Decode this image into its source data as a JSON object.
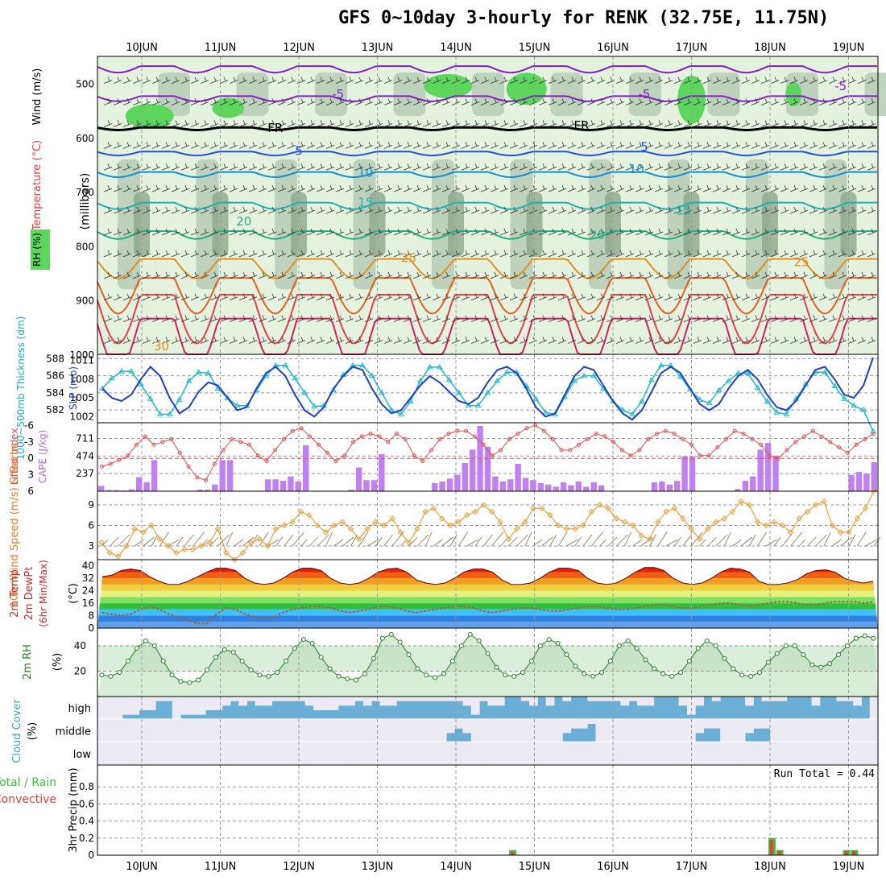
{
  "title": "GFS 0~10day 3-hourly for RENK (32.75E, 11.75N)",
  "colors": {
    "rh_light": "#e6f2e0",
    "rh_mid": "#b4c8b4",
    "rh_dark": "#8ca88c",
    "rh_green": "#5cd65c",
    "cloud_blue": "#6baed6",
    "cloud_white": "#ecebf3",
    "cape_bar": "#c080f0",
    "li_line": "#e05050",
    "slp_line": "#2040c0",
    "thick_line": "#20b8c8",
    "wind_line": "#e8a040",
    "rh_line": "#208020",
    "precip_total": "#40c040",
    "precip_conv": "#e04040"
  },
  "chart_data": [
    {
      "id": "upper-air",
      "type": "heatmap",
      "xlabel": "",
      "ylabel": "(millibars)",
      "side_labels": [
        "RH (%)",
        "Temperature",
        "(°C)",
        "Wind",
        "(m/s)"
      ],
      "ylim": [
        1000,
        450
      ],
      "ticks": [
        500,
        600,
        700,
        800,
        900,
        1000
      ],
      "dates": [
        "10JUN",
        "11JUN",
        "12JUN",
        "13JUN",
        "14JUN",
        "15JUN",
        "16JUN",
        "17JUN",
        "18JUN",
        "19JUN"
      ],
      "contour_labels": [
        {
          "text": "-5",
          "day": 2.5,
          "p": 520,
          "color": "#8020c0"
        },
        {
          "text": "-5",
          "day": 6.4,
          "p": 520,
          "color": "#8020c0"
        },
        {
          "text": "-5",
          "day": 8.9,
          "p": 505,
          "color": "#8020c0"
        },
        {
          "text": "FR",
          "day": 1.7,
          "p": 582,
          "color": "#000000"
        },
        {
          "text": "FR",
          "day": 5.6,
          "p": 578,
          "color": "#000000"
        },
        {
          "text": "5",
          "day": 2.0,
          "p": 625,
          "color": "#2050e0"
        },
        {
          "text": "5",
          "day": 6.4,
          "p": 617,
          "color": "#2050e0"
        },
        {
          "text": "10",
          "day": 2.85,
          "p": 665,
          "color": "#1090d0"
        },
        {
          "text": "10",
          "day": 6.3,
          "p": 658,
          "color": "#1090d0"
        },
        {
          "text": "15",
          "day": 2.85,
          "p": 720,
          "color": "#20b0b0"
        },
        {
          "text": "15",
          "day": 6.9,
          "p": 735,
          "color": "#20b0b0"
        },
        {
          "text": "20",
          "day": 1.3,
          "p": 755,
          "color": "#20b080"
        },
        {
          "text": "20",
          "day": 5.8,
          "p": 780,
          "color": "#20b080"
        },
        {
          "text": "25",
          "day": 3.4,
          "p": 822,
          "color": "#e09020"
        },
        {
          "text": "25",
          "day": 8.4,
          "p": 830,
          "color": "#e09020"
        },
        {
          "text": "30",
          "day": 0.25,
          "p": 985,
          "color": "#e09020"
        }
      ]
    },
    {
      "id": "slp-thickness",
      "type": "line",
      "ylabel_left": "1000~500mb Thickness (dm)",
      "ylabel_right": "SLP (mb)",
      "yticks_left": [
        588,
        586,
        584,
        582
      ],
      "yticks_right": [
        1011,
        1008,
        1005,
        1002
      ],
      "ylim_left": [
        580.5,
        588.5
      ],
      "ylim_right": [
        1001,
        1012
      ],
      "series": [
        {
          "name": "Thickness",
          "marker": "triangle",
          "values": [
            584.5,
            585.7,
            586.5,
            586.5,
            585.0,
            583.3,
            581.5,
            581.5,
            583.2,
            585.4,
            586.4,
            586.3,
            584.5,
            583.4,
            582.5,
            582.5,
            584.3,
            586.0,
            587.2,
            587.2,
            585.7,
            584.0,
            582.4,
            582.5,
            584.3,
            586.1,
            587.2,
            587.2,
            586.0,
            584.0,
            582.0,
            581.5,
            583.0,
            585.4,
            587.0,
            587.0,
            585.5,
            584.0,
            582.5,
            582.5,
            584.0,
            585.4,
            586.4,
            586.4,
            584.8,
            583.3,
            581.7,
            581.5,
            583.5,
            585.4,
            586.0,
            586.0,
            584.5,
            583.0,
            582.0,
            581.5,
            583.0,
            585.5,
            587.2,
            587.2,
            585.9,
            584.4,
            583.2,
            582.8,
            584.3,
            585.4,
            586.3,
            586.3,
            584.6,
            583.0,
            581.7,
            581.5,
            583.3,
            585.0,
            586.4,
            586.4,
            584.8,
            583.3,
            582.5,
            582.0,
            579.5
          ]
        },
        {
          "name": "SLP",
          "marker": "none",
          "values": [
            1006.5,
            1005.0,
            1004.5,
            1005.5,
            1008.0,
            1010.0,
            1008.5,
            1005.0,
            1002.5,
            1003.5,
            1006.0,
            1007.5,
            1007.0,
            1005.0,
            1003.0,
            1003.5,
            1006.5,
            1009.0,
            1010.0,
            1008.5,
            1005.5,
            1003.0,
            1002.0,
            1003.5,
            1006.5,
            1008.5,
            1010.0,
            1009.5,
            1006.5,
            1004.0,
            1002.5,
            1003.0,
            1005.0,
            1007.0,
            1008.5,
            1007.5,
            1006.0,
            1004.5,
            1004.0,
            1005.0,
            1007.5,
            1009.5,
            1010.0,
            1009.0,
            1006.5,
            1003.5,
            1002.0,
            1002.5,
            1005.5,
            1008.5,
            1010.0,
            1009.5,
            1007.0,
            1004.5,
            1002.5,
            1001.5,
            1003.0,
            1006.0,
            1009.0,
            1010.0,
            1009.0,
            1006.5,
            1004.0,
            1003.0,
            1004.0,
            1006.5,
            1008.5,
            1009.5,
            1008.0,
            1005.5,
            1003.5,
            1003.0,
            1004.5,
            1007.0,
            1009.5,
            1010.0,
            1008.0,
            1005.5,
            1005.0,
            1007.0,
            1011.5
          ]
        }
      ]
    },
    {
      "id": "cape-li",
      "type": "bar",
      "ylabel_left": "Lifted Index",
      "ylabel_right": "CAPE (J/kg)",
      "yticks_left": [
        "-6",
        "-3",
        "0",
        "3",
        "6"
      ],
      "yticks_right": [
        711,
        474,
        237
      ],
      "ylim_left": [
        6,
        -6.5
      ],
      "ylim_right": [
        0,
        880
      ],
      "series": [
        {
          "name": "CAPE",
          "type": "bar",
          "values": [
            70,
            15,
            15,
            10,
            25,
            190,
            120,
            420,
            0,
            0,
            0,
            0,
            0,
            20,
            20,
            90,
            420,
            420,
            0,
            0,
            0,
            0,
            160,
            160,
            140,
            200,
            130,
            620,
            0,
            0,
            0,
            0,
            0,
            20,
            320,
            150,
            150,
            500,
            0,
            0,
            0,
            0,
            0,
            0,
            110,
            130,
            170,
            220,
            380,
            560,
            880,
            600,
            200,
            130,
            160,
            370,
            180,
            150,
            110,
            90,
            60,
            120,
            80,
            130,
            60,
            120,
            80,
            0,
            0,
            0,
            0,
            0,
            0,
            120,
            130,
            90,
            140,
            470,
            470,
            0,
            0,
            0,
            0,
            0,
            30,
            140,
            200,
            560,
            650,
            480,
            0,
            0,
            0,
            0,
            0,
            0,
            0,
            0,
            0,
            220,
            260,
            240,
            390
          ]
        },
        {
          "name": "Lifted Index",
          "type": "line",
          "values": [
            1.5,
            1.0,
            0.3,
            -0.5,
            -2.5,
            -4.0,
            -2.5,
            -3.0,
            -3.5,
            -1.0,
            1.5,
            3.5,
            4.0,
            1.0,
            -1.5,
            -3.5,
            -3.0,
            -2.5,
            -0.5,
            0.5,
            -1.5,
            -3.5,
            -5.0,
            -5.5,
            -4.0,
            -2.5,
            -1.0,
            0.5,
            -0.5,
            -3.0,
            -4.0,
            -4.5,
            -4.0,
            -3.0,
            -4.5,
            -3.5,
            -0.5,
            0.5,
            -1.5,
            -3.5,
            -4.5,
            -5.0,
            -5.0,
            -4.0,
            -2.5,
            -0.5,
            -1.5,
            -3.5,
            -4.5,
            -5.5,
            -6.0,
            -5.0,
            -3.5,
            -1.5,
            -1.5,
            -2.5,
            -3.5,
            -4.5,
            -4.0,
            -3.0,
            -1.5,
            -0.5,
            -1.5,
            -3.5,
            -4.5,
            -5.0,
            -4.5,
            -3.5,
            -2.5,
            -0.5,
            -0.5,
            -2.0,
            -3.5,
            -5.0,
            -4.5,
            -3.5,
            -2.5,
            -0.5,
            0.0,
            -1.5,
            -3.0,
            -4.0,
            -5.0,
            -4.0,
            -3.0,
            -2.0,
            -1.0,
            -2.5,
            -3.5,
            -4.5
          ]
        }
      ]
    },
    {
      "id": "wind10m",
      "type": "line",
      "ylabel": "10m Wind Speed (m/s) & Barbs",
      "yticks": [
        3,
        6,
        9
      ],
      "ylim": [
        1,
        11
      ],
      "values": [
        3.5,
        2.0,
        1.5,
        3.0,
        5.5,
        5.0,
        6.0,
        4.0,
        3.0,
        2.0,
        2.5,
        2.5,
        3.0,
        3.5,
        5.5,
        2.0,
        1.0,
        2.0,
        3.5,
        4.0,
        3.0,
        5.5,
        6.0,
        6.5,
        8.0,
        7.5,
        6.0,
        5.0,
        6.0,
        6.5,
        5.5,
        4.0,
        5.5,
        6.5,
        6.0,
        7.0,
        5.0,
        3.5,
        5.5,
        8.0,
        8.5,
        7.0,
        6.0,
        6.5,
        7.5,
        8.0,
        9.0,
        8.0,
        6.5,
        4.0,
        5.5,
        6.5,
        8.5,
        8.5,
        7.5,
        6.0,
        5.5,
        5.5,
        6.0,
        8.0,
        9.0,
        8.5,
        7.0,
        6.5,
        6.0,
        4.5,
        4.0,
        6.5,
        8.0,
        8.5,
        7.0,
        5.5,
        4.0,
        5.5,
        6.5,
        7.0,
        8.0,
        9.5,
        9.0,
        6.5,
        6.0,
        6.5,
        6.0,
        5.0,
        7.0,
        8.0,
        9.0,
        9.5,
        6.0,
        5.0,
        5.0,
        7.0,
        8.5,
        11.0
      ]
    },
    {
      "id": "temp2m",
      "type": "area",
      "ylabel": "2m Temp 2m DewPt (6hr Min/Max) (°C)",
      "yticks": [
        40,
        32,
        24,
        16,
        8,
        0
      ],
      "ylim": [
        0,
        44
      ],
      "temp": [
        33,
        34,
        37,
        38,
        37,
        33,
        30,
        28,
        28,
        30,
        33,
        36,
        38.5,
        38.5,
        37,
        32,
        29,
        28,
        29,
        32,
        36,
        38.5,
        38.5,
        37,
        32,
        29,
        28,
        29,
        32,
        36,
        38,
        38.5,
        36,
        31,
        29,
        28,
        29,
        32,
        36,
        38,
        38,
        36,
        31,
        28,
        28,
        29,
        32,
        36,
        38.5,
        38.5,
        37,
        32,
        29,
        28,
        29,
        32,
        36,
        39,
        39,
        37,
        32,
        29,
        28,
        29,
        32,
        36,
        38.5,
        38,
        36,
        30,
        28,
        28,
        29,
        31,
        35,
        37,
        37.5,
        36,
        32,
        30,
        29,
        30
      ],
      "dewpt": [
        10,
        9,
        8,
        9,
        12,
        14,
        12,
        9,
        7,
        5,
        3,
        3,
        9,
        13,
        12,
        9,
        7,
        6,
        7,
        10,
        12,
        13,
        14,
        14,
        13,
        11,
        10,
        11,
        12,
        14,
        14,
        13,
        11,
        10,
        11,
        12,
        13,
        14,
        14,
        13,
        11,
        10,
        11,
        12,
        13,
        13,
        12,
        11,
        11,
        12,
        13,
        14,
        14,
        13,
        12,
        12,
        13,
        14,
        15,
        15,
        14,
        13,
        13,
        14,
        15,
        16,
        16,
        15,
        14,
        15,
        16,
        17,
        17,
        16,
        15,
        15,
        16,
        17,
        17,
        17,
        16,
        17
      ]
    },
    {
      "id": "rh2m",
      "type": "line",
      "ylabel": "2m RH (%)",
      "yticks": [
        40,
        20
      ],
      "ylim": [
        0,
        54
      ],
      "values": [
        17,
        16,
        19,
        28,
        38,
        44,
        40,
        28,
        17,
        12,
        11,
        13,
        21,
        31,
        37,
        35,
        28,
        21,
        17,
        16,
        19,
        28,
        38,
        45,
        42,
        31,
        22,
        16,
        14,
        13,
        18,
        30,
        46,
        49,
        43,
        33,
        22,
        17,
        15,
        18,
        28,
        40,
        49,
        44,
        34,
        23,
        17,
        16,
        19,
        28,
        40,
        45,
        42,
        33,
        24,
        18,
        16,
        19,
        28,
        40,
        44,
        38,
        29,
        22,
        18,
        16,
        19,
        28,
        38,
        44,
        40,
        30,
        22,
        17,
        16,
        19,
        27,
        34,
        40,
        40,
        33,
        25,
        23,
        26,
        33,
        40,
        46,
        48,
        46
      ]
    },
    {
      "id": "cloud",
      "type": "table",
      "ylabel": "Cloud Cover (%)",
      "ylabels": [
        "high",
        "middle",
        "low"
      ],
      "high": [
        0,
        0,
        0,
        20,
        20,
        40,
        40,
        80,
        80,
        0,
        20,
        20,
        20,
        40,
        40,
        60,
        80,
        60,
        80,
        60,
        60,
        80,
        80,
        80,
        80,
        60,
        40,
        40,
        40,
        60,
        60,
        80,
        60,
        80,
        60,
        60,
        80,
        80,
        80,
        80,
        80,
        80,
        80,
        80,
        60,
        20,
        80,
        60,
        60,
        100,
        100,
        80,
        60,
        100,
        60,
        100,
        80,
        100,
        100,
        80,
        80,
        80,
        80,
        60,
        80,
        60,
        60,
        100,
        100,
        100,
        60,
        20,
        60,
        100,
        80,
        100,
        100,
        100,
        60,
        100,
        80,
        80,
        80,
        100,
        100,
        100,
        60,
        100,
        100,
        80,
        80,
        60,
        100,
        0
      ],
      "middle": [
        0,
        0,
        0,
        0,
        0,
        0,
        0,
        0,
        0,
        0,
        0,
        0,
        0,
        0,
        0,
        0,
        0,
        0,
        0,
        0,
        0,
        0,
        0,
        0,
        0,
        0,
        0,
        0,
        0,
        0,
        0,
        0,
        0,
        0,
        0,
        0,
        0,
        0,
        0,
        0,
        0,
        0,
        40,
        60,
        40,
        0,
        0,
        0,
        0,
        0,
        0,
        0,
        0,
        0,
        0,
        0,
        40,
        60,
        60,
        80,
        0,
        0,
        0,
        0,
        0,
        0,
        0,
        0,
        0,
        0,
        0,
        0,
        40,
        60,
        60,
        0,
        0,
        0,
        40,
        60,
        60,
        0,
        0,
        0,
        0,
        0,
        0,
        0,
        0,
        0,
        0,
        0,
        0,
        0
      ],
      "low": [
        0,
        0,
        0,
        0,
        0,
        0,
        0,
        0,
        0,
        0,
        0,
        0,
        0,
        0,
        0,
        0,
        0,
        0,
        0,
        0,
        0,
        0,
        0,
        0,
        0,
        0,
        0,
        0,
        0,
        0,
        0,
        0,
        0,
        0,
        0,
        0,
        0,
        0,
        0,
        0,
        0,
        0,
        0,
        0,
        0,
        0,
        0,
        0,
        0,
        0,
        0,
        0,
        0,
        0,
        0,
        0,
        0,
        0,
        0,
        0,
        0,
        0,
        0,
        0,
        0,
        0,
        0,
        0,
        0,
        0,
        0,
        0,
        0,
        0,
        0,
        0,
        0,
        0,
        0,
        0,
        0,
        0,
        0,
        0,
        0,
        0,
        0,
        0,
        0,
        0
      ]
    },
    {
      "id": "precip",
      "type": "bar",
      "ylabel": "3hr Precip (mm)",
      "legend_left": [
        "Total / Rain",
        "Convective"
      ],
      "yticks": [
        0.8,
        0.6,
        0.4,
        0.2,
        0
      ],
      "ylim": [
        0,
        1.0
      ],
      "run_total_label": "Run Total = 0.44",
      "bars": [
        {
          "day": 4.72,
          "total": 0.06,
          "conv": 0.04
        },
        {
          "day": 8.02,
          "total": 0.2,
          "conv": 0.18
        },
        {
          "day": 8.12,
          "total": 0.06,
          "conv": 0.05
        },
        {
          "day": 8.97,
          "total": 0.06,
          "conv": 0.05
        },
        {
          "day": 9.07,
          "total": 0.06,
          "conv": 0.05
        }
      ]
    }
  ]
}
